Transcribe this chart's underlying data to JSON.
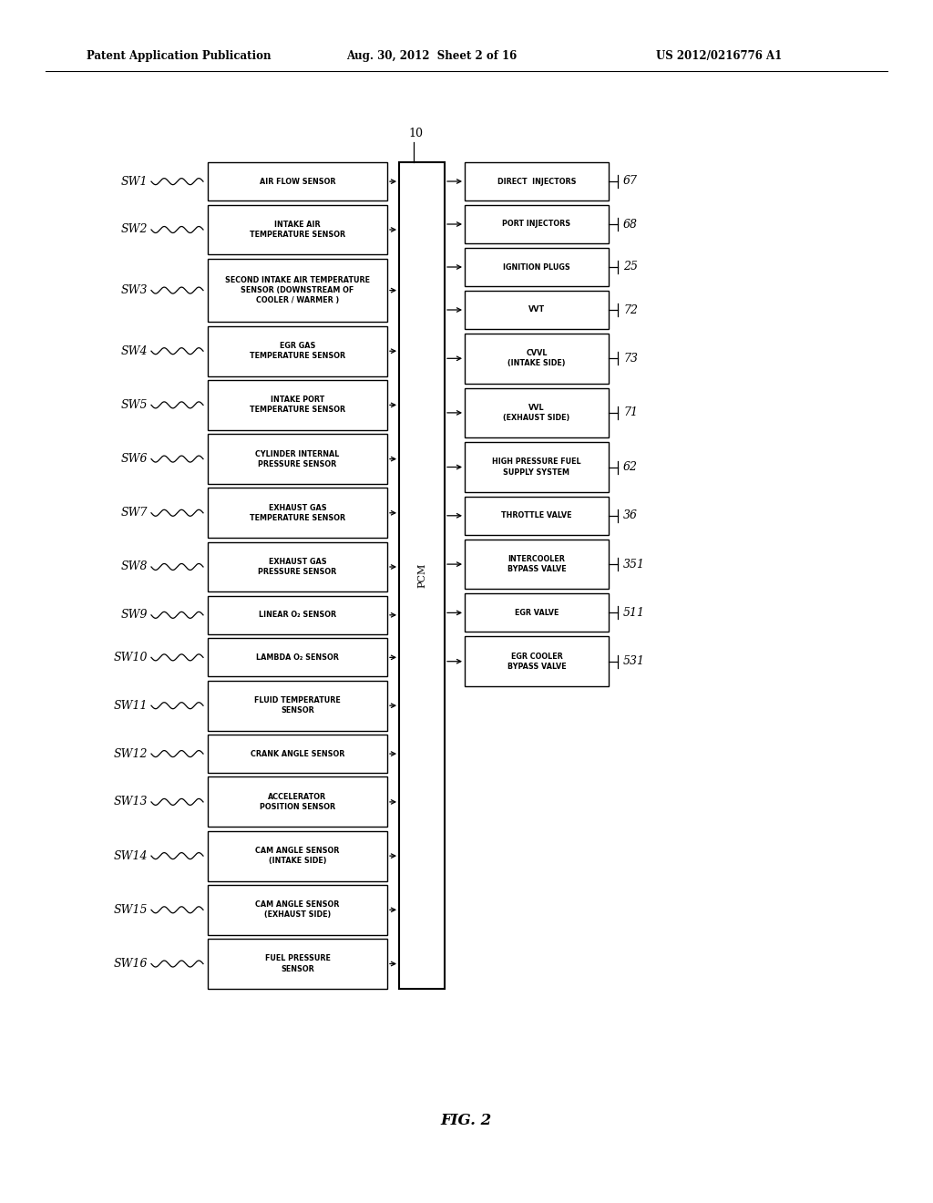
{
  "header_left": "Patent Application Publication",
  "header_mid": "Aug. 30, 2012  Sheet 2 of 16",
  "header_right": "US 2012/0216776 A1",
  "pcm_label": "PCM",
  "pcm_ref": "10",
  "figure_label": "FIG. 2",
  "left_sensors": [
    {
      "sw": "SW1",
      "label": "AIR FLOW SENSOR",
      "lines": 1
    },
    {
      "sw": "SW2",
      "label": "INTAKE AIR\nTEMPERATURE SENSOR",
      "lines": 2
    },
    {
      "sw": "SW3",
      "label": "SECOND INTAKE AIR TEMPERATURE\nSENSOR (DOWNSTREAM OF\nCOOLER / WARMER )",
      "lines": 3
    },
    {
      "sw": "SW4",
      "label": "EGR GAS\nTEMPERATURE SENSOR",
      "lines": 2
    },
    {
      "sw": "SW5",
      "label": "INTAKE PORT\nTEMPERATURE SENSOR",
      "lines": 2
    },
    {
      "sw": "SW6",
      "label": "CYLINDER INTERNAL\nPRESSURE SENSOR",
      "lines": 2
    },
    {
      "sw": "SW7",
      "label": "EXHAUST GAS\nTEMPERATURE SENSOR",
      "lines": 2
    },
    {
      "sw": "SW8",
      "label": "EXHAUST GAS\nPRESSURE SENSOR",
      "lines": 2
    },
    {
      "sw": "SW9",
      "label": "LINEAR O₂ SENSOR",
      "lines": 1
    },
    {
      "sw": "SW10",
      "label": "LAMBDA O₂ SENSOR",
      "lines": 1
    },
    {
      "sw": "SW11",
      "label": "FLUID TEMPERATURE\nSENSOR",
      "lines": 2
    },
    {
      "sw": "SW12",
      "label": "CRANK ANGLE SENSOR",
      "lines": 1
    },
    {
      "sw": "SW13",
      "label": "ACCELERATOR\nPOSITION SENSOR",
      "lines": 2
    },
    {
      "sw": "SW14",
      "label": "CAM ANGLE SENSOR\n(INTAKE SIDE)",
      "lines": 2
    },
    {
      "sw": "SW15",
      "label": "CAM ANGLE SENSOR\n(EXHAUST SIDE)",
      "lines": 2
    },
    {
      "sw": "SW16",
      "label": "FUEL PRESSURE\nSENSOR",
      "lines": 2
    }
  ],
  "right_actuators": [
    {
      "label": "DIRECT  INJECTORS",
      "ref": "67",
      "lines": 1
    },
    {
      "label": "PORT INJECTORS",
      "ref": "68",
      "lines": 1
    },
    {
      "label": "IGNITION PLUGS",
      "ref": "25",
      "lines": 1
    },
    {
      "label": "VVT",
      "ref": "72",
      "lines": 1
    },
    {
      "label": "CVVL\n(INTAKE SIDE)",
      "ref": "73",
      "lines": 2
    },
    {
      "label": "VVL\n(EXHAUST SIDE)",
      "ref": "71",
      "lines": 2
    },
    {
      "label": "HIGH PRESSURE FUEL\nSUPPLY SYSTEM",
      "ref": "62",
      "lines": 2
    },
    {
      "label": "THROTTLE VALVE",
      "ref": "36",
      "lines": 1
    },
    {
      "label": "INTERCOOLER\nBYPASS VALVE",
      "ref": "351",
      "lines": 2
    },
    {
      "label": "EGR VALVE",
      "ref": "511",
      "lines": 1
    },
    {
      "label": "EGR COOLER\nBYPASS VALVE",
      "ref": "531",
      "lines": 2
    }
  ],
  "bg_color": "#ffffff",
  "box_color": "#ffffff",
  "line_color": "#000000",
  "text_color": "#000000",
  "font_size_header": 8.5,
  "font_size_box": 5.8,
  "font_size_sw": 9,
  "font_size_ref": 9,
  "font_size_pcm": 8,
  "font_size_fig": 12
}
